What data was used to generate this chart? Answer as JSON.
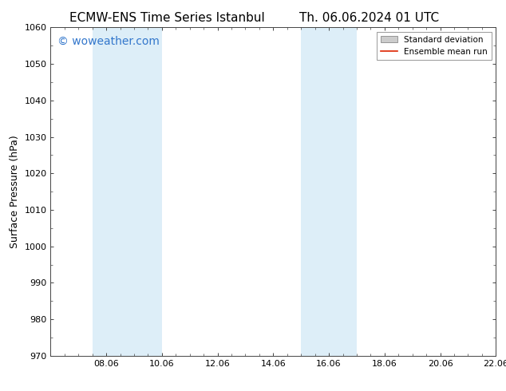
{
  "title_left": "ECMW-ENS Time Series Istanbul",
  "title_right": "Th. 06.06.2024 01 UTC",
  "ylabel": "Surface Pressure (hPa)",
  "ylim": [
    970,
    1060
  ],
  "yticks": [
    970,
    980,
    990,
    1000,
    1010,
    1020,
    1030,
    1040,
    1050,
    1060
  ],
  "xlim": [
    0,
    16
  ],
  "xtick_labels": [
    "08.06",
    "10.06",
    "12.06",
    "14.06",
    "16.06",
    "18.06",
    "20.06",
    "22.06"
  ],
  "xtick_positions": [
    2,
    4,
    6,
    8,
    10,
    12,
    14,
    16
  ],
  "shaded_regions": [
    {
      "x_start": 1.5,
      "x_end": 4.0,
      "color": "#ddeef8"
    },
    {
      "x_start": 9.0,
      "x_end": 11.0,
      "color": "#ddeef8"
    }
  ],
  "watermark_text": "© woweather.com",
  "watermark_color": "#3377cc",
  "watermark_fontsize": 10,
  "title_fontsize": 11,
  "axis_label_fontsize": 9,
  "tick_fontsize": 8,
  "background_color": "#ffffff",
  "legend_mean_color": "#dd2200",
  "spine_color": "#888888"
}
